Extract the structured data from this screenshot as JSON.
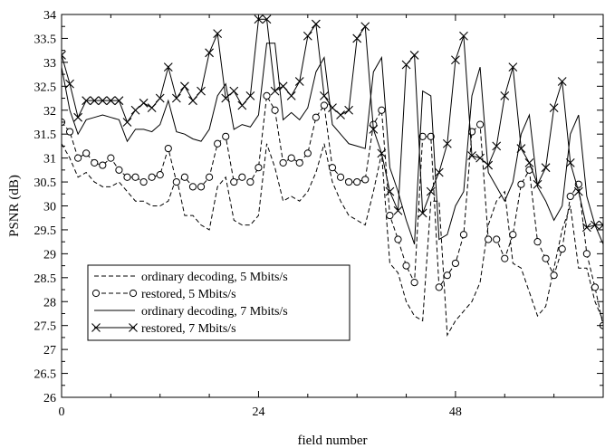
{
  "chart_data": {
    "type": "line",
    "xlabel": "field number",
    "ylabel": "PSNR (dB)",
    "xlim": [
      0,
      66
    ],
    "ylim": [
      26,
      34
    ],
    "xticks": [
      0,
      24,
      48
    ],
    "xtick_labels": [
      "0",
      "24",
      "48"
    ],
    "yticks": [
      26,
      26.5,
      27,
      27.5,
      28,
      28.5,
      29,
      29.5,
      30,
      30.5,
      31,
      31.5,
      32,
      32.5,
      33,
      33.5,
      34
    ],
    "ytick_labels": [
      "26",
      "26.5",
      "27",
      "27.5",
      "28",
      "28.5",
      "29",
      "29.5",
      "30",
      "30.5",
      "31",
      "31.5",
      "32",
      "32.5",
      "33",
      "33.5",
      "34"
    ],
    "grid": false,
    "legend_position": "bottom-left",
    "x": [
      0,
      1,
      2,
      3,
      4,
      5,
      6,
      7,
      8,
      9,
      10,
      11,
      12,
      13,
      14,
      15,
      16,
      17,
      18,
      19,
      20,
      21,
      22,
      23,
      24,
      25,
      26,
      27,
      28,
      29,
      30,
      31,
      32,
      33,
      34,
      35,
      36,
      37,
      38,
      39,
      40,
      41,
      42,
      43,
      44,
      45,
      46,
      47,
      48,
      49,
      50,
      51,
      52,
      53,
      54,
      55,
      56,
      57,
      58,
      59,
      60,
      61,
      62,
      63,
      64,
      65,
      66
    ],
    "series": [
      {
        "name": "ordinary decoding, 5 Mbits/s",
        "style": "dashed",
        "marker": "none",
        "values": [
          31.3,
          31.0,
          30.6,
          30.7,
          30.5,
          30.4,
          30.4,
          30.5,
          30.3,
          30.1,
          30.1,
          30.0,
          30.0,
          30.1,
          30.6,
          29.8,
          29.8,
          29.6,
          29.5,
          30.4,
          30.6,
          29.7,
          29.6,
          29.6,
          29.8,
          31.3,
          30.8,
          30.1,
          30.2,
          30.1,
          30.3,
          30.7,
          31.3,
          30.5,
          30.1,
          29.8,
          29.7,
          29.6,
          30.3,
          31.1,
          28.8,
          28.6,
          28.0,
          27.7,
          27.6,
          30.1,
          30.1,
          27.3,
          27.6,
          27.8,
          28.0,
          28.4,
          29.6,
          30.1,
          30.3,
          28.8,
          28.7,
          28.2,
          27.7,
          27.9,
          28.7,
          29.5,
          30.0,
          28.7,
          28.7,
          28.0,
          27.6
        ],
        "note": "right portion (x>=59) estimated"
      },
      {
        "name": "restored, 5 Mbits/s",
        "style": "dashed",
        "marker": "circle",
        "values": [
          31.75,
          31.55,
          31.0,
          31.1,
          30.9,
          30.85,
          31.0,
          30.75,
          30.6,
          30.6,
          30.5,
          30.6,
          30.65,
          31.2,
          30.5,
          30.6,
          30.4,
          30.4,
          30.6,
          31.3,
          31.45,
          30.5,
          30.6,
          30.5,
          30.8,
          32.3,
          32.0,
          30.9,
          31.0,
          30.9,
          31.1,
          31.85,
          32.1,
          30.8,
          30.6,
          30.5,
          30.5,
          30.55,
          31.7,
          32.0,
          29.8,
          29.3,
          28.75,
          28.4,
          31.45,
          31.45,
          28.3,
          28.55,
          28.8,
          29.4,
          31.55,
          31.7,
          29.3,
          29.3,
          28.9,
          29.4,
          30.45,
          30.75,
          29.25,
          28.9,
          28.55,
          29.1,
          30.2,
          30.45,
          29.0,
          28.3,
          27.5
        ],
        "note": "right portion (x>=59) estimated"
      },
      {
        "name": "ordinary decoding, 7 Mbits/s",
        "style": "solid",
        "marker": "none",
        "values": [
          32.9,
          32.0,
          31.5,
          31.8,
          31.85,
          31.9,
          31.85,
          31.8,
          31.35,
          31.6,
          31.6,
          31.55,
          31.7,
          32.2,
          31.55,
          31.5,
          31.4,
          31.35,
          31.6,
          32.3,
          32.55,
          31.6,
          31.7,
          31.65,
          31.9,
          33.4,
          33.4,
          31.8,
          31.95,
          31.8,
          32.05,
          32.8,
          33.1,
          31.7,
          31.5,
          31.3,
          31.25,
          31.2,
          32.8,
          33.1,
          30.8,
          30.3,
          29.7,
          29.2,
          32.4,
          32.3,
          29.3,
          29.4,
          30.0,
          30.3,
          32.3,
          32.9,
          30.7,
          30.4,
          30.1,
          30.5,
          31.5,
          31.9,
          30.4,
          30.1,
          29.7,
          30.0,
          31.5,
          31.9,
          30.2,
          29.6,
          29.2
        ],
        "note": "right portion (x>=59) estimated"
      },
      {
        "name": "restored, 7 Mbits/s",
        "style": "solid",
        "marker": "x",
        "values": [
          33.15,
          32.55,
          31.85,
          32.2,
          32.2,
          32.2,
          32.2,
          32.2,
          31.75,
          32.0,
          32.15,
          32.05,
          32.25,
          32.9,
          32.25,
          32.5,
          32.2,
          32.4,
          33.2,
          33.6,
          32.25,
          32.4,
          32.1,
          32.3,
          33.9,
          33.9,
          32.4,
          32.5,
          32.3,
          32.6,
          33.55,
          33.8,
          32.3,
          32.05,
          31.9,
          32.0,
          33.5,
          33.75,
          31.6,
          31.1,
          30.3,
          29.9,
          32.95,
          33.15,
          29.85,
          30.3,
          30.7,
          31.3,
          33.05,
          33.55,
          31.05,
          31.0,
          30.85,
          31.25,
          32.3,
          32.9,
          31.2,
          30.9,
          30.45,
          30.8,
          32.05,
          32.6,
          30.9,
          30.3,
          29.55,
          29.6,
          29.6
        ],
        "note": "right portion (x>=59) estimated"
      }
    ]
  }
}
